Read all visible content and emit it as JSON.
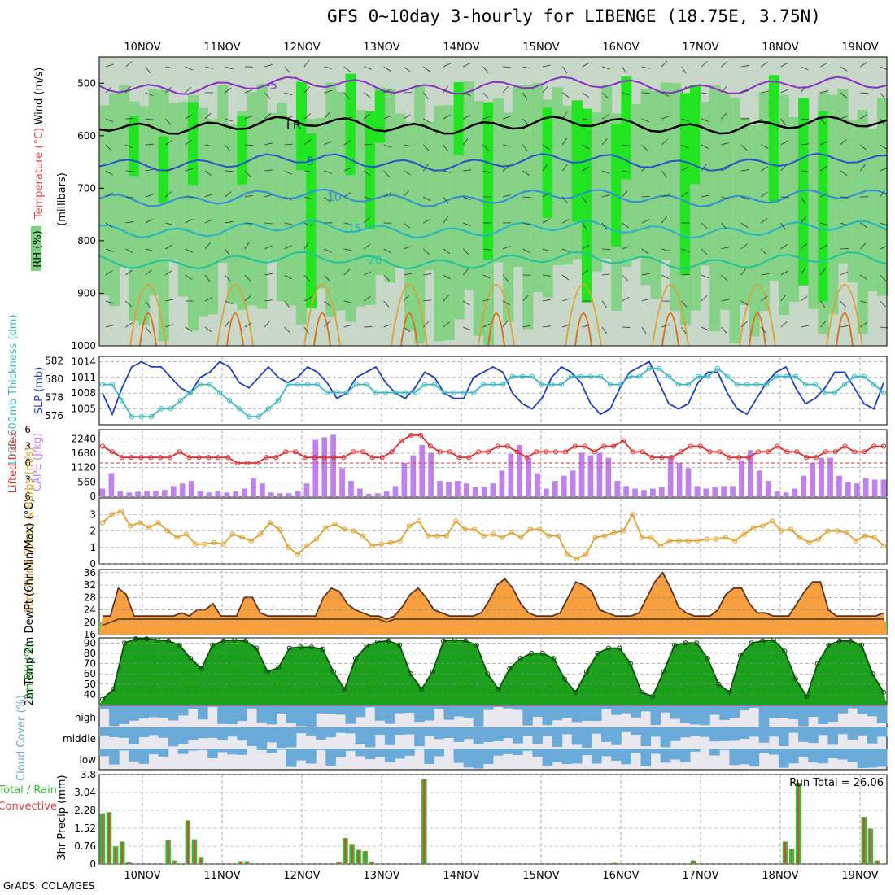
{
  "header": {
    "title": "GFS 0~10day 3-hourly for LIBENGE (18.75E, 3.75N)",
    "credit": "GrADS: COLA/IGES"
  },
  "colors": {
    "rh_bright": "#22e522",
    "rh_mid": "#7ed27e",
    "rh_pale": "#c8d8c8",
    "wind_barb": "#333333",
    "slp": "#1e3ec8",
    "thickness": "#3ab9c3",
    "lifted_index": "#e03030",
    "cape": "#c080f0",
    "wind_speed": "#e0a030",
    "temp_high": "#e85010",
    "temp_mid": "#f8a040",
    "temp_low": "#f8f080",
    "rh_surface": "#1aa01a",
    "cloud": "#6aaad8",
    "cloud_clear": "#e8e8ee",
    "precip_total": "#30c030",
    "precip_convective": "#e04040"
  },
  "chart_data": [
    {
      "panel": "upper-air",
      "type": "heatmap",
      "ylabel": "(millibars)",
      "legend_labels": {
        "wind": "Wind (m/s)",
        "temperature": "Temperature (°C)",
        "rh": "RH (%)"
      },
      "y_ticks": [
        500,
        600,
        700,
        800,
        900,
        1000
      ],
      "ylim": [
        450,
        1000
      ],
      "dates": [
        "10NOV",
        "11NOV",
        "12NOV",
        "13NOV",
        "14NOV",
        "15NOV",
        "16NOV",
        "17NOV",
        "18NOV",
        "19NOV"
      ],
      "isotherm_labels": [
        {
          "label": "-5",
          "pressure": 505,
          "color": "#8a2fc8"
        },
        {
          "label": "FR",
          "pressure": 580,
          "color": "#000000"
        },
        {
          "label": "5",
          "pressure": 650,
          "color": "#2255cc"
        },
        {
          "label": "10",
          "pressure": 718,
          "color": "#2f8fd8"
        },
        {
          "label": "15",
          "pressure": 778,
          "color": "#22b4c4"
        },
        {
          "label": "20",
          "pressure": 838,
          "color": "#1ec49a"
        }
      ]
    },
    {
      "panel": "thickness-slp",
      "type": "line",
      "ylabel_left": "1000-500mb Thickness (dm)",
      "ylabel_right": "SLP (mb)",
      "left_ticks": [
        576,
        578,
        580,
        582
      ],
      "right_ticks": [
        1005,
        1008,
        1011,
        1014
      ],
      "series": [
        {
          "name": "SLP",
          "axis": "right",
          "values": [
            1008,
            1004,
            1009,
            1013,
            1014,
            1013,
            1013,
            1011,
            1009,
            1008,
            1011,
            1012,
            1014,
            1013,
            1010,
            1009,
            1011,
            1013,
            1011,
            1010,
            1011,
            1013,
            1012,
            1010,
            1007,
            1008,
            1011,
            1012,
            1013,
            1010,
            1008,
            1007,
            1009,
            1012,
            1011,
            1008,
            1007,
            1007,
            1011,
            1012,
            1013,
            1012,
            1008,
            1006,
            1005,
            1007,
            1011,
            1013,
            1012,
            1010,
            1006,
            1004,
            1005,
            1009,
            1012,
            1013,
            1014,
            1010,
            1006,
            1005,
            1006,
            1010,
            1012,
            1012,
            1008,
            1005,
            1004,
            1007,
            1010,
            1012,
            1013,
            1009,
            1006,
            1007,
            1009,
            1012,
            1012,
            1009,
            1006,
            1005,
            1010
          ]
        },
        {
          "name": "Thickness",
          "axis": "left",
          "values": [
            579,
            579,
            577,
            575,
            575,
            575,
            576,
            576,
            577,
            578,
            579,
            579,
            578,
            577,
            576,
            575,
            575,
            576,
            577,
            579,
            579,
            579,
            579,
            578,
            578,
            578,
            579,
            579,
            578,
            578,
            578,
            578,
            578,
            579,
            579,
            578,
            578,
            578,
            578,
            579,
            579,
            579,
            580,
            580,
            580,
            579,
            579,
            579,
            580,
            580,
            580,
            580,
            579,
            579,
            580,
            580,
            581,
            581,
            580,
            579,
            579,
            580,
            580,
            581,
            580,
            579,
            579,
            579,
            579,
            580,
            580,
            580,
            579,
            579,
            578,
            578,
            579,
            580,
            580,
            579,
            578
          ]
        }
      ]
    },
    {
      "panel": "cape-li",
      "type": "bar",
      "ylabel_left": "Lifted Index",
      "ylabel_right": "CAPE (J/kg)",
      "li_ticks": [
        -6,
        -3,
        0,
        3,
        6
      ],
      "cape_ticks": [
        0,
        560,
        1120,
        1680,
        2240
      ],
      "series": [
        {
          "name": "Lifted Index",
          "type": "line",
          "values": [
            -3,
            -2,
            -1,
            -1,
            -1,
            -1,
            -1,
            -1,
            -2,
            -1,
            -1,
            -1,
            -1,
            -1,
            0,
            0,
            0,
            -1,
            -1,
            -2,
            -2,
            -1,
            -1,
            -1,
            -1,
            -1,
            -2,
            -2,
            -1,
            -1,
            -2,
            -4,
            -5,
            -5,
            -3,
            -2,
            -2,
            -1,
            -1,
            -2,
            -2,
            -3,
            -3,
            -2,
            -1,
            -2,
            -2,
            -2,
            -2,
            -3,
            -3,
            -2,
            -3,
            -3,
            -4,
            -2,
            -2,
            -1,
            -1,
            -1,
            -2,
            -3,
            -3,
            -2,
            -2,
            -1,
            -1,
            -1,
            -2,
            -2,
            -3,
            -2,
            -2,
            -1,
            -1,
            -2,
            -2,
            -3,
            -2,
            -2,
            -3,
            -3
          ]
        },
        {
          "name": "CAPE",
          "type": "bar",
          "values": [
            300,
            900,
            200,
            150,
            180,
            200,
            200,
            250,
            400,
            500,
            600,
            200,
            150,
            220,
            150,
            200,
            300,
            700,
            500,
            150,
            120,
            120,
            200,
            500,
            2200,
            2300,
            2400,
            1100,
            600,
            300,
            100,
            120,
            200,
            400,
            1300,
            1600,
            2000,
            1700,
            600,
            560,
            600,
            500,
            350,
            360,
            500,
            1000,
            1650,
            2000,
            1500,
            900,
            300,
            600,
            800,
            1000,
            1700,
            1600,
            1700,
            1500,
            600,
            400,
            300,
            250,
            300,
            350,
            1500,
            1300,
            1100,
            400,
            300,
            350,
            400,
            400,
            1400,
            1800,
            1000,
            600,
            200,
            150,
            300,
            800,
            1300,
            1500,
            1500,
            800,
            550,
            500,
            700,
            650,
            650
          ]
        }
      ]
    },
    {
      "panel": "wind10m",
      "type": "line",
      "ylabel": "10m Wind Speed & Barbs (m/s)",
      "y_ticks": [
        0,
        1,
        2,
        3
      ],
      "ylim": [
        0,
        4
      ],
      "series": [
        {
          "name": "10m Wind Speed",
          "values": [
            2.5,
            3.0,
            3.2,
            2.3,
            2.5,
            2.2,
            2.5,
            2.0,
            1.6,
            1.8,
            1.2,
            1.2,
            1.3,
            1.2,
            1.8,
            1.6,
            1.4,
            1.8,
            2.5,
            2.1,
            1.0,
            0.6,
            1.1,
            1.5,
            2.2,
            2.4,
            2.1,
            2.0,
            1.7,
            1.1,
            1.2,
            1.3,
            1.4,
            2.3,
            2.6,
            1.7,
            1.7,
            1.7,
            2.6,
            2.1,
            2.1,
            1.7,
            1.8,
            1.6,
            1.9,
            1.6,
            2.1,
            2.1,
            1.7,
            1.7,
            0.6,
            0.3,
            0.6,
            1.6,
            1.7,
            1.9,
            2.0,
            3.0,
            1.6,
            1.6,
            1.1,
            1.4,
            1.4,
            1.4,
            1.4,
            1.5,
            1.5,
            1.6,
            1.4,
            1.8,
            2.2,
            2.3,
            2.6,
            2.0,
            2.1,
            1.6,
            1.3,
            1.5,
            2.0,
            2.0,
            1.9,
            1.4,
            1.7,
            1.6,
            1.1
          ]
        }
      ]
    },
    {
      "panel": "temperature",
      "type": "area",
      "ylabel": "2m Temp 2m DewPt (6hr Min/Max) (°C)",
      "y_ticks": [
        16,
        20,
        24,
        28,
        32,
        36
      ],
      "ylim": [
        16,
        36
      ],
      "series": [
        {
          "name": "2m Temp",
          "values": [
            22,
            22,
            31,
            29,
            22,
            22,
            22,
            22,
            22,
            22,
            23,
            22,
            24,
            24,
            26,
            22,
            22,
            22,
            28,
            28,
            23,
            22,
            22,
            22,
            22,
            22,
            22,
            22,
            28,
            31,
            30,
            26,
            24,
            23,
            22,
            22,
            21,
            22,
            25,
            29,
            31,
            28,
            24,
            23,
            22,
            22,
            22,
            22,
            23,
            27,
            32,
            34,
            31,
            26,
            23,
            22,
            22,
            22,
            23,
            28,
            33,
            32,
            30,
            24,
            23,
            22,
            22,
            22,
            23,
            28,
            33,
            36,
            31,
            25,
            23,
            22,
            22,
            22,
            24,
            29,
            31,
            31,
            26,
            23,
            23,
            22,
            22,
            22,
            26,
            30,
            33,
            33,
            24,
            22,
            22,
            22,
            22,
            22,
            22,
            23
          ]
        },
        {
          "name": "2m DewPt",
          "values": [
            19,
            20,
            21,
            21,
            21,
            21,
            21,
            21,
            21,
            21,
            21,
            21,
            21,
            21,
            21,
            21,
            21,
            21,
            21,
            21,
            21,
            21,
            21,
            21,
            21,
            21,
            21,
            21,
            21,
            21,
            21,
            21,
            21,
            21,
            21,
            21,
            20,
            21,
            21,
            21,
            21,
            21,
            21,
            21,
            21,
            21,
            21,
            21,
            21,
            21,
            21,
            21,
            21,
            21,
            21,
            21,
            21,
            21,
            21,
            21,
            21,
            21,
            21,
            21,
            21,
            21,
            21,
            21,
            21,
            21,
            21,
            21,
            21,
            21,
            21,
            21,
            21,
            21,
            21,
            21,
            21,
            21,
            21,
            21,
            21,
            21,
            21,
            21,
            21,
            21,
            21,
            21,
            21,
            21,
            21,
            21,
            21,
            21,
            21,
            21
          ]
        }
      ]
    },
    {
      "panel": "relative-humidity",
      "type": "area",
      "ylabel": "2m RH (%)",
      "y_ticks": [
        40,
        50,
        60,
        70,
        80,
        90
      ],
      "ylim": [
        30,
        95
      ],
      "series": [
        {
          "name": "2m RH",
          "values": [
            35,
            45,
            90,
            94,
            94,
            93,
            92,
            88,
            75,
            65,
            88,
            92,
            93,
            92,
            85,
            62,
            66,
            85,
            86,
            86,
            84,
            62,
            45,
            75,
            87,
            91,
            92,
            88,
            60,
            45,
            62,
            92,
            93,
            92,
            88,
            60,
            45,
            65,
            75,
            80,
            80,
            75,
            55,
            42,
            62,
            80,
            85,
            85,
            70,
            42,
            38,
            62,
            88,
            90,
            90,
            75,
            50,
            42,
            78,
            90,
            92,
            93,
            82,
            55,
            38,
            70,
            88,
            92,
            92,
            88,
            60,
            42
          ]
        }
      ]
    },
    {
      "panel": "cloud-cover",
      "type": "heatmap",
      "ylabel": "Cloud Cover (%)",
      "rows": [
        "high",
        "middle",
        "low"
      ]
    },
    {
      "panel": "precip",
      "type": "bar",
      "ylabel": "3hr Precip (mm)",
      "legend": {
        "total": "Total / Rain",
        "convective": "Convective"
      },
      "run_total_label": "Run Total = 26.06",
      "y_ticks": [
        0,
        0.76,
        1.52,
        2.28,
        3.04,
        3.8
      ],
      "ylim": [
        0,
        3.8
      ],
      "series": [
        {
          "name": "Total",
          "values": [
            2.15,
            2.2,
            0.75,
            0.95,
            0.08,
            0,
            0,
            0,
            0,
            0,
            1.0,
            0.15,
            0,
            1.85,
            1.05,
            0.3,
            0,
            0,
            0,
            0,
            0,
            0.12,
            0.12,
            0,
            0,
            0,
            0,
            0,
            0,
            0,
            0,
            0,
            0,
            0,
            0,
            0,
            0.1,
            1.1,
            0.85,
            0.6,
            0.55,
            0.1,
            0,
            0,
            0,
            0,
            0,
            0,
            0,
            3.6,
            0,
            0,
            0,
            0,
            0,
            0,
            0,
            0,
            0,
            0,
            0,
            0,
            0,
            0,
            0,
            0,
            0,
            0,
            0,
            0,
            0,
            0,
            0,
            0,
            0,
            0,
            0,
            0,
            0.05,
            0,
            0,
            0,
            0,
            0,
            0,
            0,
            0,
            0,
            0,
            0,
            0.15,
            0,
            0,
            0,
            0,
            0,
            0,
            0,
            0,
            0,
            0,
            0,
            0,
            0,
            0.95,
            0.65,
            3.45,
            0,
            0,
            0,
            0,
            0,
            0,
            0,
            0,
            0,
            2.0,
            1.5,
            0.15,
            0
          ]
        }
      ]
    }
  ]
}
